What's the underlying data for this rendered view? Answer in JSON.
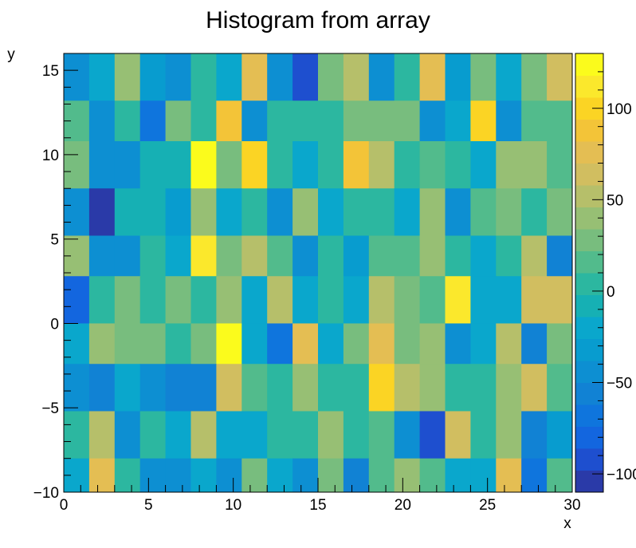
{
  "chart_data": {
    "type": "heatmap",
    "title": "Histogram from array",
    "xlabel": "x",
    "ylabel": "y",
    "xlim": [
      0,
      30
    ],
    "ylim": [
      -10,
      16
    ],
    "x_ticks": [
      "0",
      "5",
      "10",
      "15",
      "20",
      "25",
      "30"
    ],
    "y_ticks": [
      "−10",
      "−5",
      "0",
      "5",
      "10",
      "15"
    ],
    "z_ticks": [
      "−100",
      "−50",
      "0",
      "50",
      "100"
    ],
    "z_range": [
      -110,
      130
    ],
    "palette": [
      "#2a3aa8",
      "#1e4fcf",
      "#1366df",
      "#0f75dd",
      "#1182d4",
      "#0d8fd2",
      "#089ccf",
      "#0aa7cc",
      "#16b0b4",
      "#2cb7a0",
      "#52bb8c",
      "#78bd7e",
      "#97bf74",
      "#b6bf6a",
      "#d1be60",
      "#e4be53",
      "#f3c438",
      "#fbd424",
      "#fbe82c",
      "#fbfb1c"
    ],
    "rows": [
      {
        "y0": 13.2,
        "y1": 16.0,
        "values": [
          -48,
          -15,
          42,
          -30,
          -50,
          5,
          -15,
          70,
          -48,
          -88,
          28,
          50,
          -48,
          5,
          70,
          -30,
          28,
          -15,
          28,
          60
        ]
      },
      {
        "y0": 10.8,
        "y1": 13.2,
        "values": [
          20,
          -48,
          0,
          -65,
          25,
          5,
          85,
          -48,
          0,
          0,
          0,
          28,
          28,
          28,
          -48,
          -15,
          95,
          -48,
          10,
          10
        ]
      },
      {
        "y0": 8.0,
        "y1": 10.8,
        "values": [
          28,
          -48,
          -48,
          -5,
          -5,
          130,
          32,
          100,
          5,
          -15,
          0,
          90,
          55,
          0,
          20,
          5,
          -15,
          42,
          42,
          18
        ]
      },
      {
        "y0": 5.2,
        "y1": 8.0,
        "values": [
          -50,
          -110,
          -5,
          -5,
          -30,
          42,
          -15,
          5,
          -50,
          40,
          -15,
          0,
          0,
          -15,
          40,
          -40,
          18,
          28,
          5,
          30
        ]
      },
      {
        "y0": 2.8,
        "y1": 5.2,
        "values": [
          40,
          -40,
          -40,
          0,
          -20,
          110,
          32,
          55,
          20,
          -48,
          0,
          -30,
          20,
          20,
          40,
          0,
          -20,
          0,
          55,
          -60
        ]
      },
      {
        "y0": 0.0,
        "y1": 2.8,
        "values": [
          -85,
          5,
          22,
          5,
          25,
          5,
          40,
          -25,
          55,
          -15,
          5,
          -20,
          50,
          32,
          18,
          110,
          -25,
          -20,
          65,
          58
        ]
      },
      {
        "y0": -2.4,
        "y1": 0.0,
        "values": [
          -25,
          35,
          28,
          32,
          0,
          30,
          130,
          -25,
          -68,
          70,
          -25,
          28,
          70,
          25,
          42,
          -45,
          -20,
          48,
          -60,
          22
        ]
      },
      {
        "y0": -5.2,
        "y1": -2.4,
        "values": [
          -45,
          -55,
          -25,
          -45,
          -55,
          -60,
          65,
          20,
          5,
          40,
          0,
          0,
          100,
          52,
          40,
          5,
          0,
          40,
          62,
          20
        ]
      },
      {
        "y0": -8.0,
        "y1": -5.2,
        "values": [
          5,
          55,
          -48,
          0,
          -20,
          55,
          -20,
          -20,
          8,
          0,
          40,
          5,
          20,
          -48,
          -95,
          65,
          5,
          45,
          -60,
          -35
        ]
      },
      {
        "y0": -10.0,
        "y1": -8.0,
        "values": [
          -15,
          70,
          5,
          -50,
          -40,
          -20,
          -45,
          25,
          -15,
          -45,
          28,
          -55,
          20,
          35,
          20,
          -15,
          -15,
          70,
          -70,
          10
        ]
      }
    ]
  }
}
